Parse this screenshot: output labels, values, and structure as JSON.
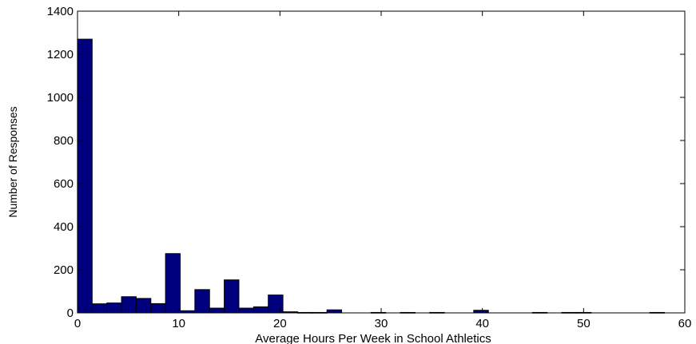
{
  "chart_data": {
    "type": "bar",
    "subtype": "histogram",
    "title": "",
    "xlabel": "Average Hours Per Week in School Athletics",
    "ylabel": "Number of Responses",
    "xlim": [
      0,
      60
    ],
    "ylim": [
      0,
      1400
    ],
    "xticks": [
      0,
      10,
      20,
      30,
      40,
      50,
      60
    ],
    "yticks": [
      0,
      200,
      400,
      600,
      800,
      1000,
      1200,
      1400
    ],
    "grid": false,
    "legend": "none",
    "bar_color": "#00007f",
    "bin_width": 1.45,
    "bins": [
      {
        "x": 0.72,
        "value": 1270
      },
      {
        "x": 2.17,
        "value": 42
      },
      {
        "x": 3.62,
        "value": 46
      },
      {
        "x": 5.07,
        "value": 75
      },
      {
        "x": 6.52,
        "value": 67
      },
      {
        "x": 7.97,
        "value": 43
      },
      {
        "x": 9.42,
        "value": 275
      },
      {
        "x": 10.87,
        "value": 10
      },
      {
        "x": 12.32,
        "value": 108
      },
      {
        "x": 13.77,
        "value": 22
      },
      {
        "x": 15.22,
        "value": 153
      },
      {
        "x": 16.67,
        "value": 22
      },
      {
        "x": 18.12,
        "value": 28
      },
      {
        "x": 19.57,
        "value": 83
      },
      {
        "x": 21.02,
        "value": 5
      },
      {
        "x": 22.47,
        "value": 2
      },
      {
        "x": 23.92,
        "value": 2
      },
      {
        "x": 25.37,
        "value": 14
      },
      {
        "x": 26.82,
        "value": 0
      },
      {
        "x": 28.27,
        "value": 0
      },
      {
        "x": 29.72,
        "value": 2
      },
      {
        "x": 31.17,
        "value": 0
      },
      {
        "x": 32.62,
        "value": 2
      },
      {
        "x": 34.07,
        "value": 0
      },
      {
        "x": 35.52,
        "value": 2
      },
      {
        "x": 36.97,
        "value": 0
      },
      {
        "x": 38.42,
        "value": 0
      },
      {
        "x": 39.87,
        "value": 12
      },
      {
        "x": 41.32,
        "value": 0
      },
      {
        "x": 42.77,
        "value": 0
      },
      {
        "x": 44.22,
        "value": 0
      },
      {
        "x": 45.67,
        "value": 2
      },
      {
        "x": 47.12,
        "value": 0
      },
      {
        "x": 48.57,
        "value": 2
      },
      {
        "x": 50.02,
        "value": 2
      },
      {
        "x": 51.47,
        "value": 0
      },
      {
        "x": 52.92,
        "value": 0
      },
      {
        "x": 54.37,
        "value": 0
      },
      {
        "x": 55.82,
        "value": 0
      },
      {
        "x": 57.27,
        "value": 2
      }
    ]
  }
}
